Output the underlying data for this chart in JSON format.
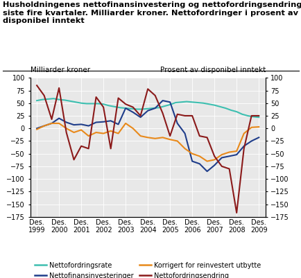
{
  "title_line1": "Husholdningenes nettofinansinvestering og nettofordringsendring",
  "title_line2": "siste fire kvartaler. Milliarder kroner. Nettofordringer i prosent av",
  "title_line3": "disponibel inntekt",
  "ylabel_left": "Milliarder kroner",
  "ylabel_right": "Prosent av disponibel inntekt",
  "x_labels": [
    "Des.\n1999",
    "Des.\n2000",
    "Des.\n2001",
    "Des.\n2002",
    "Des.\n2003",
    "Des.\n2004",
    "Des.\n2005",
    "Des.\n2006",
    "Des.\n2007",
    "Des.\n2008",
    "Des.\n2009"
  ],
  "x_positions": [
    0,
    1,
    2,
    3,
    4,
    5,
    6,
    7,
    8,
    9,
    10
  ],
  "ylim": [
    -175,
    100
  ],
  "yticks": [
    -175,
    -150,
    -125,
    -100,
    -75,
    -50,
    -25,
    0,
    25,
    50,
    75,
    100
  ],
  "nettofordringsrate": {
    "label": "Nettofordringsrate",
    "color": "#3DBFB0",
    "x": [
      0,
      0.25,
      0.5,
      0.75,
      1.0,
      1.25,
      1.5,
      1.75,
      2.0,
      2.25,
      2.5,
      2.75,
      3.0,
      3.25,
      3.5,
      3.75,
      4.0,
      4.25,
      4.5,
      4.75,
      5.0,
      5.25,
      5.5,
      5.75,
      6.0,
      6.25,
      6.5,
      6.75,
      7.0,
      7.25,
      7.5,
      7.75,
      8.0,
      8.25,
      8.5,
      8.75,
      9.0,
      9.25,
      9.5,
      9.75,
      10.0
    ],
    "y": [
      55,
      57,
      58,
      59,
      57,
      56,
      54,
      52,
      50,
      49,
      49,
      49,
      48,
      45,
      43,
      41,
      40,
      39,
      38,
      38,
      39,
      40,
      41,
      44,
      47,
      51,
      52,
      53,
      52,
      51,
      50,
      48,
      46,
      43,
      40,
      36,
      33,
      28,
      25,
      23,
      22
    ]
  },
  "nettofinansinvesteringer": {
    "label": "Nettofinansinvesteringer",
    "color": "#1F3D8A",
    "x": [
      0,
      0.33,
      0.67,
      1.0,
      1.33,
      1.67,
      2.0,
      2.33,
      2.67,
      3.0,
      3.33,
      3.67,
      4.0,
      4.33,
      4.67,
      5.0,
      5.33,
      5.67,
      6.0,
      6.33,
      6.67,
      7.0,
      7.33,
      7.67,
      8.0,
      8.33,
      8.67,
      9.0,
      9.33,
      9.67,
      10.0
    ],
    "y": [
      0,
      5,
      10,
      20,
      12,
      7,
      8,
      5,
      12,
      13,
      15,
      8,
      40,
      32,
      22,
      35,
      40,
      55,
      52,
      10,
      -10,
      -65,
      -70,
      -85,
      -73,
      -58,
      -55,
      -52,
      -35,
      -25,
      -18
    ]
  },
  "korrigert": {
    "label": "Korrigert for reinvestert utbytte",
    "color": "#E8891A",
    "x": [
      0,
      0.33,
      0.67,
      1.0,
      1.33,
      1.67,
      2.0,
      2.33,
      2.67,
      3.0,
      3.33,
      3.67,
      4.0,
      4.33,
      4.67,
      5.0,
      5.33,
      5.67,
      6.0,
      6.33,
      6.67,
      7.0,
      7.33,
      7.67,
      8.0,
      8.33,
      8.67,
      9.0,
      9.33,
      9.67,
      10.0
    ],
    "y": [
      -2,
      5,
      10,
      10,
      0,
      -8,
      -3,
      -15,
      -8,
      -10,
      -5,
      -10,
      10,
      0,
      -15,
      -18,
      -20,
      -18,
      -22,
      -25,
      -40,
      -50,
      -55,
      -65,
      -62,
      -52,
      -47,
      -45,
      -10,
      2,
      3
    ]
  },
  "nettofordringsendring": {
    "label": "Nettofordringsendring",
    "color": "#8B1A1A",
    "x": [
      0,
      0.33,
      0.67,
      1.0,
      1.33,
      1.67,
      2.0,
      2.33,
      2.67,
      3.0,
      3.33,
      3.67,
      4.0,
      4.33,
      4.67,
      5.0,
      5.33,
      5.67,
      6.0,
      6.33,
      6.67,
      7.0,
      7.33,
      7.67,
      8.0,
      8.33,
      8.67,
      9.0,
      9.33,
      9.67,
      10.0
    ],
    "y": [
      85,
      65,
      18,
      80,
      -8,
      -62,
      -35,
      -40,
      62,
      42,
      -40,
      60,
      48,
      42,
      25,
      78,
      65,
      30,
      -15,
      28,
      25,
      25,
      -15,
      -18,
      -55,
      -75,
      -80,
      -167,
      -40,
      25,
      25
    ]
  },
  "background_color": "#e8e8e8",
  "legend_items": [
    {
      "label": "Nettofordringsrate",
      "color": "#3DBFB0"
    },
    {
      "label": "Nettofinansinvesteringer",
      "color": "#1F3D8A"
    },
    {
      "label": "Korrigert for reinvestert utbytte",
      "color": "#E8891A"
    },
    {
      "label": "Nettofordringsendring",
      "color": "#8B1A1A"
    }
  ]
}
